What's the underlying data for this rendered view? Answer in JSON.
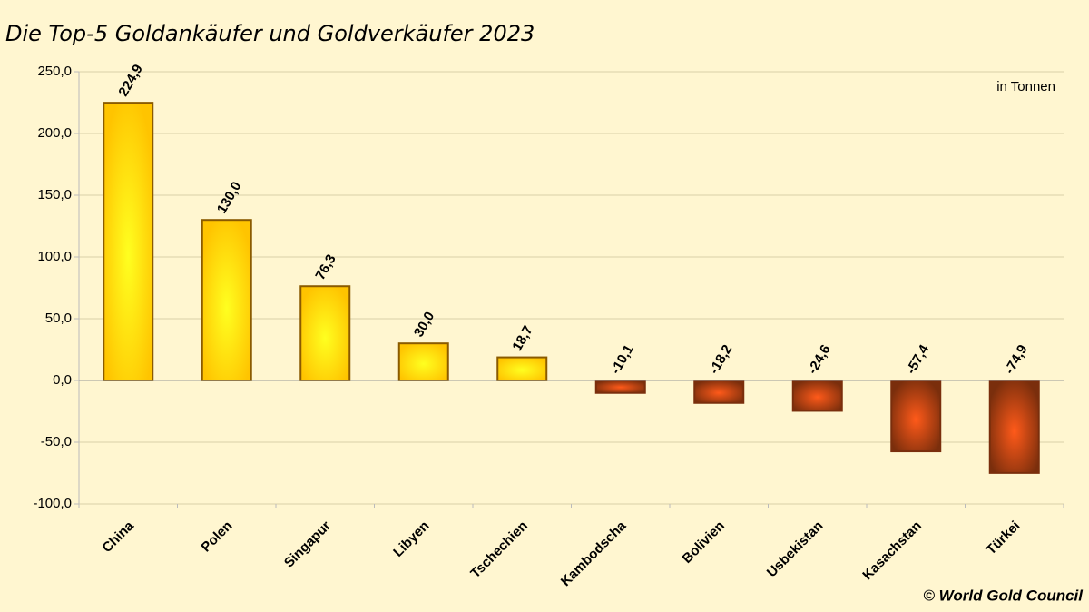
{
  "chart_data": {
    "type": "bar",
    "title": "Die Top-5 Goldankäufer und Goldverkäufer 2023",
    "annotation": "in Tonnen",
    "source": "© World Gold Council",
    "categories": [
      "China",
      "Polen",
      "Singapur",
      "Libyen",
      "Tschechien",
      "Kambodscha",
      "Bolivien",
      "Usbekistan",
      "Kasachstan",
      "Türkei"
    ],
    "values": [
      224.9,
      130.0,
      76.3,
      30.0,
      18.7,
      -10.1,
      -18.2,
      -24.6,
      -57.4,
      -74.9
    ],
    "value_labels": [
      "224,9",
      "130,0",
      "76,3",
      "30,0",
      "18,7",
      "-10,1",
      "-18,2",
      "-24,6",
      "-57,4",
      "-74,9"
    ],
    "positive_color": "#ffc400",
    "positive_highlight": "#ffff20",
    "negative_color": "#7a2e0c",
    "negative_highlight": "#ff5a1a",
    "ylim": [
      -100,
      250
    ],
    "yticks": [
      {
        "value": -100,
        "label": "-100,0"
      },
      {
        "value": -50,
        "label": "-50,0"
      },
      {
        "value": 0,
        "label": "0,0"
      },
      {
        "value": 50,
        "label": "50,0"
      },
      {
        "value": 100,
        "label": "100,0"
      },
      {
        "value": 150,
        "label": "150,0"
      },
      {
        "value": 200,
        "label": "200,0"
      },
      {
        "value": 250,
        "label": "250,0"
      }
    ],
    "grid": true
  }
}
